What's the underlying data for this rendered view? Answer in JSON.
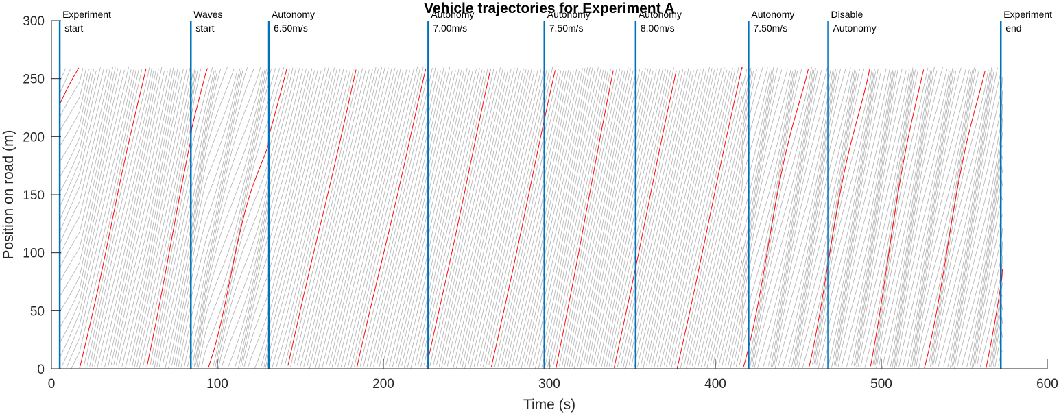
{
  "chart_data": {
    "type": "line",
    "title": "Vehicle trajectories for Experiment A",
    "xlabel": "Time (s)",
    "ylabel": "Position on road (m)",
    "xlim": [
      0,
      600
    ],
    "ylim": [
      0,
      300
    ],
    "xticks": [
      0,
      100,
      200,
      300,
      400,
      500,
      600
    ],
    "yticks": [
      0,
      50,
      100,
      150,
      200,
      250,
      300
    ],
    "grid": false,
    "ring_length_m": 260,
    "trajectory_color": "#b0b0b0",
    "highlight_color": "#ff0000",
    "marker_color": "#0072bd",
    "highlighted_vehicle": {
      "time_end_s": 573,
      "wrap_times_s": [
        17,
        57,
        93,
        142,
        184,
        226,
        265,
        304,
        339,
        377,
        416,
        455,
        492,
        525,
        562
      ],
      "start_position_m": 211,
      "end_position_m": 86
    },
    "events": [
      {
        "time_s": 5,
        "line1": "Experiment",
        "line2": "start"
      },
      {
        "time_s": 84,
        "line1": "Waves",
        "line2": "start"
      },
      {
        "time_s": 131,
        "line1": "Autonomy",
        "line2": "6.50m/s"
      },
      {
        "time_s": 227,
        "line1": "Autonomy",
        "line2": "7.00m/s"
      },
      {
        "time_s": 297,
        "line1": "Autonomy",
        "line2": "7.50m/s"
      },
      {
        "time_s": 352,
        "line1": "Autonomy",
        "line2": "8.00m/s"
      },
      {
        "time_s": 420,
        "line1": "Autonomy",
        "line2": "7.50m/s"
      },
      {
        "time_s": 468,
        "line1": "Disable",
        "line2": "Autonomy"
      },
      {
        "time_s": 572,
        "line1": "Experiment",
        "line2": "end"
      }
    ]
  }
}
